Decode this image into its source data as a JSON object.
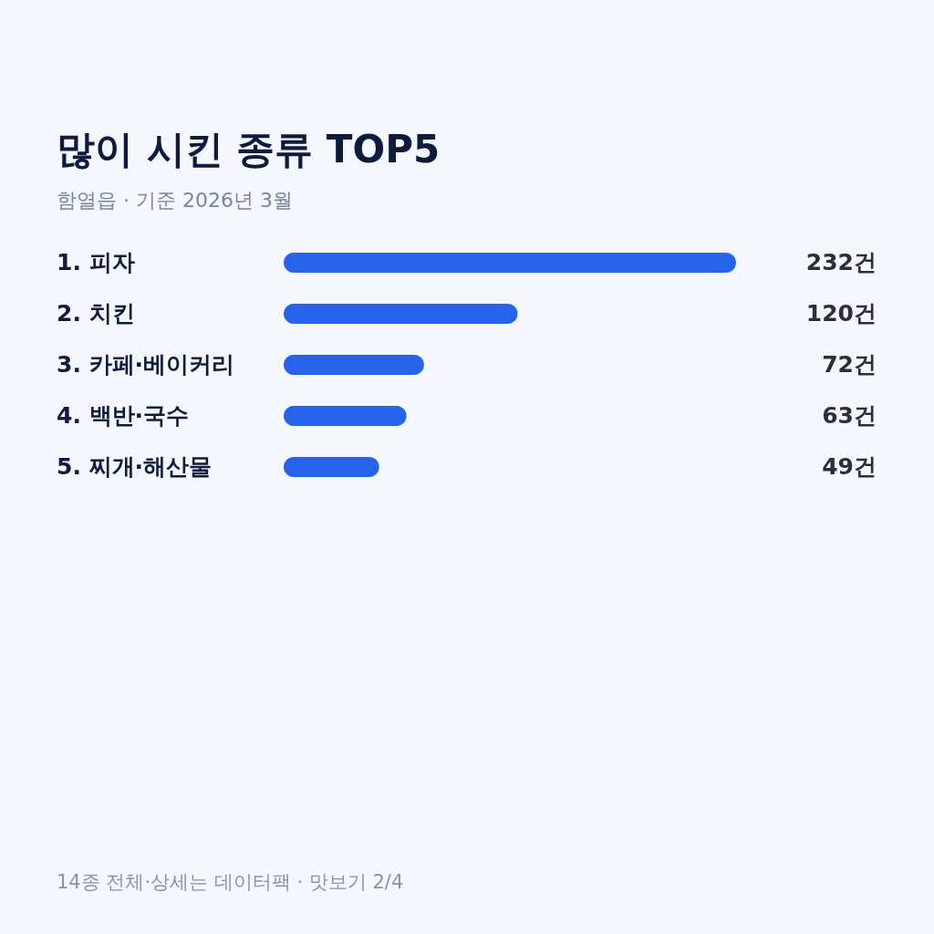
{
  "chart_data": {
    "type": "bar",
    "orientation": "horizontal",
    "title": "많이 시킨 종류 TOP5",
    "subtitle": "함열읍 · 기준 2026년 3월",
    "categories": [
      "1. 피자",
      "2. 치킨",
      "3. 카페·베이커리",
      "4. 백반·국수",
      "5. 찌개·해산물"
    ],
    "values": [
      232,
      120,
      72,
      63,
      49
    ],
    "color": "#2563eb",
    "value_labels": [
      "232건",
      "120건",
      "72건",
      "63건",
      "49건"
    ],
    "annotations": [
      "14종 전체·상세는 데이터팩 · 맛보기 2/4"
    ]
  }
}
